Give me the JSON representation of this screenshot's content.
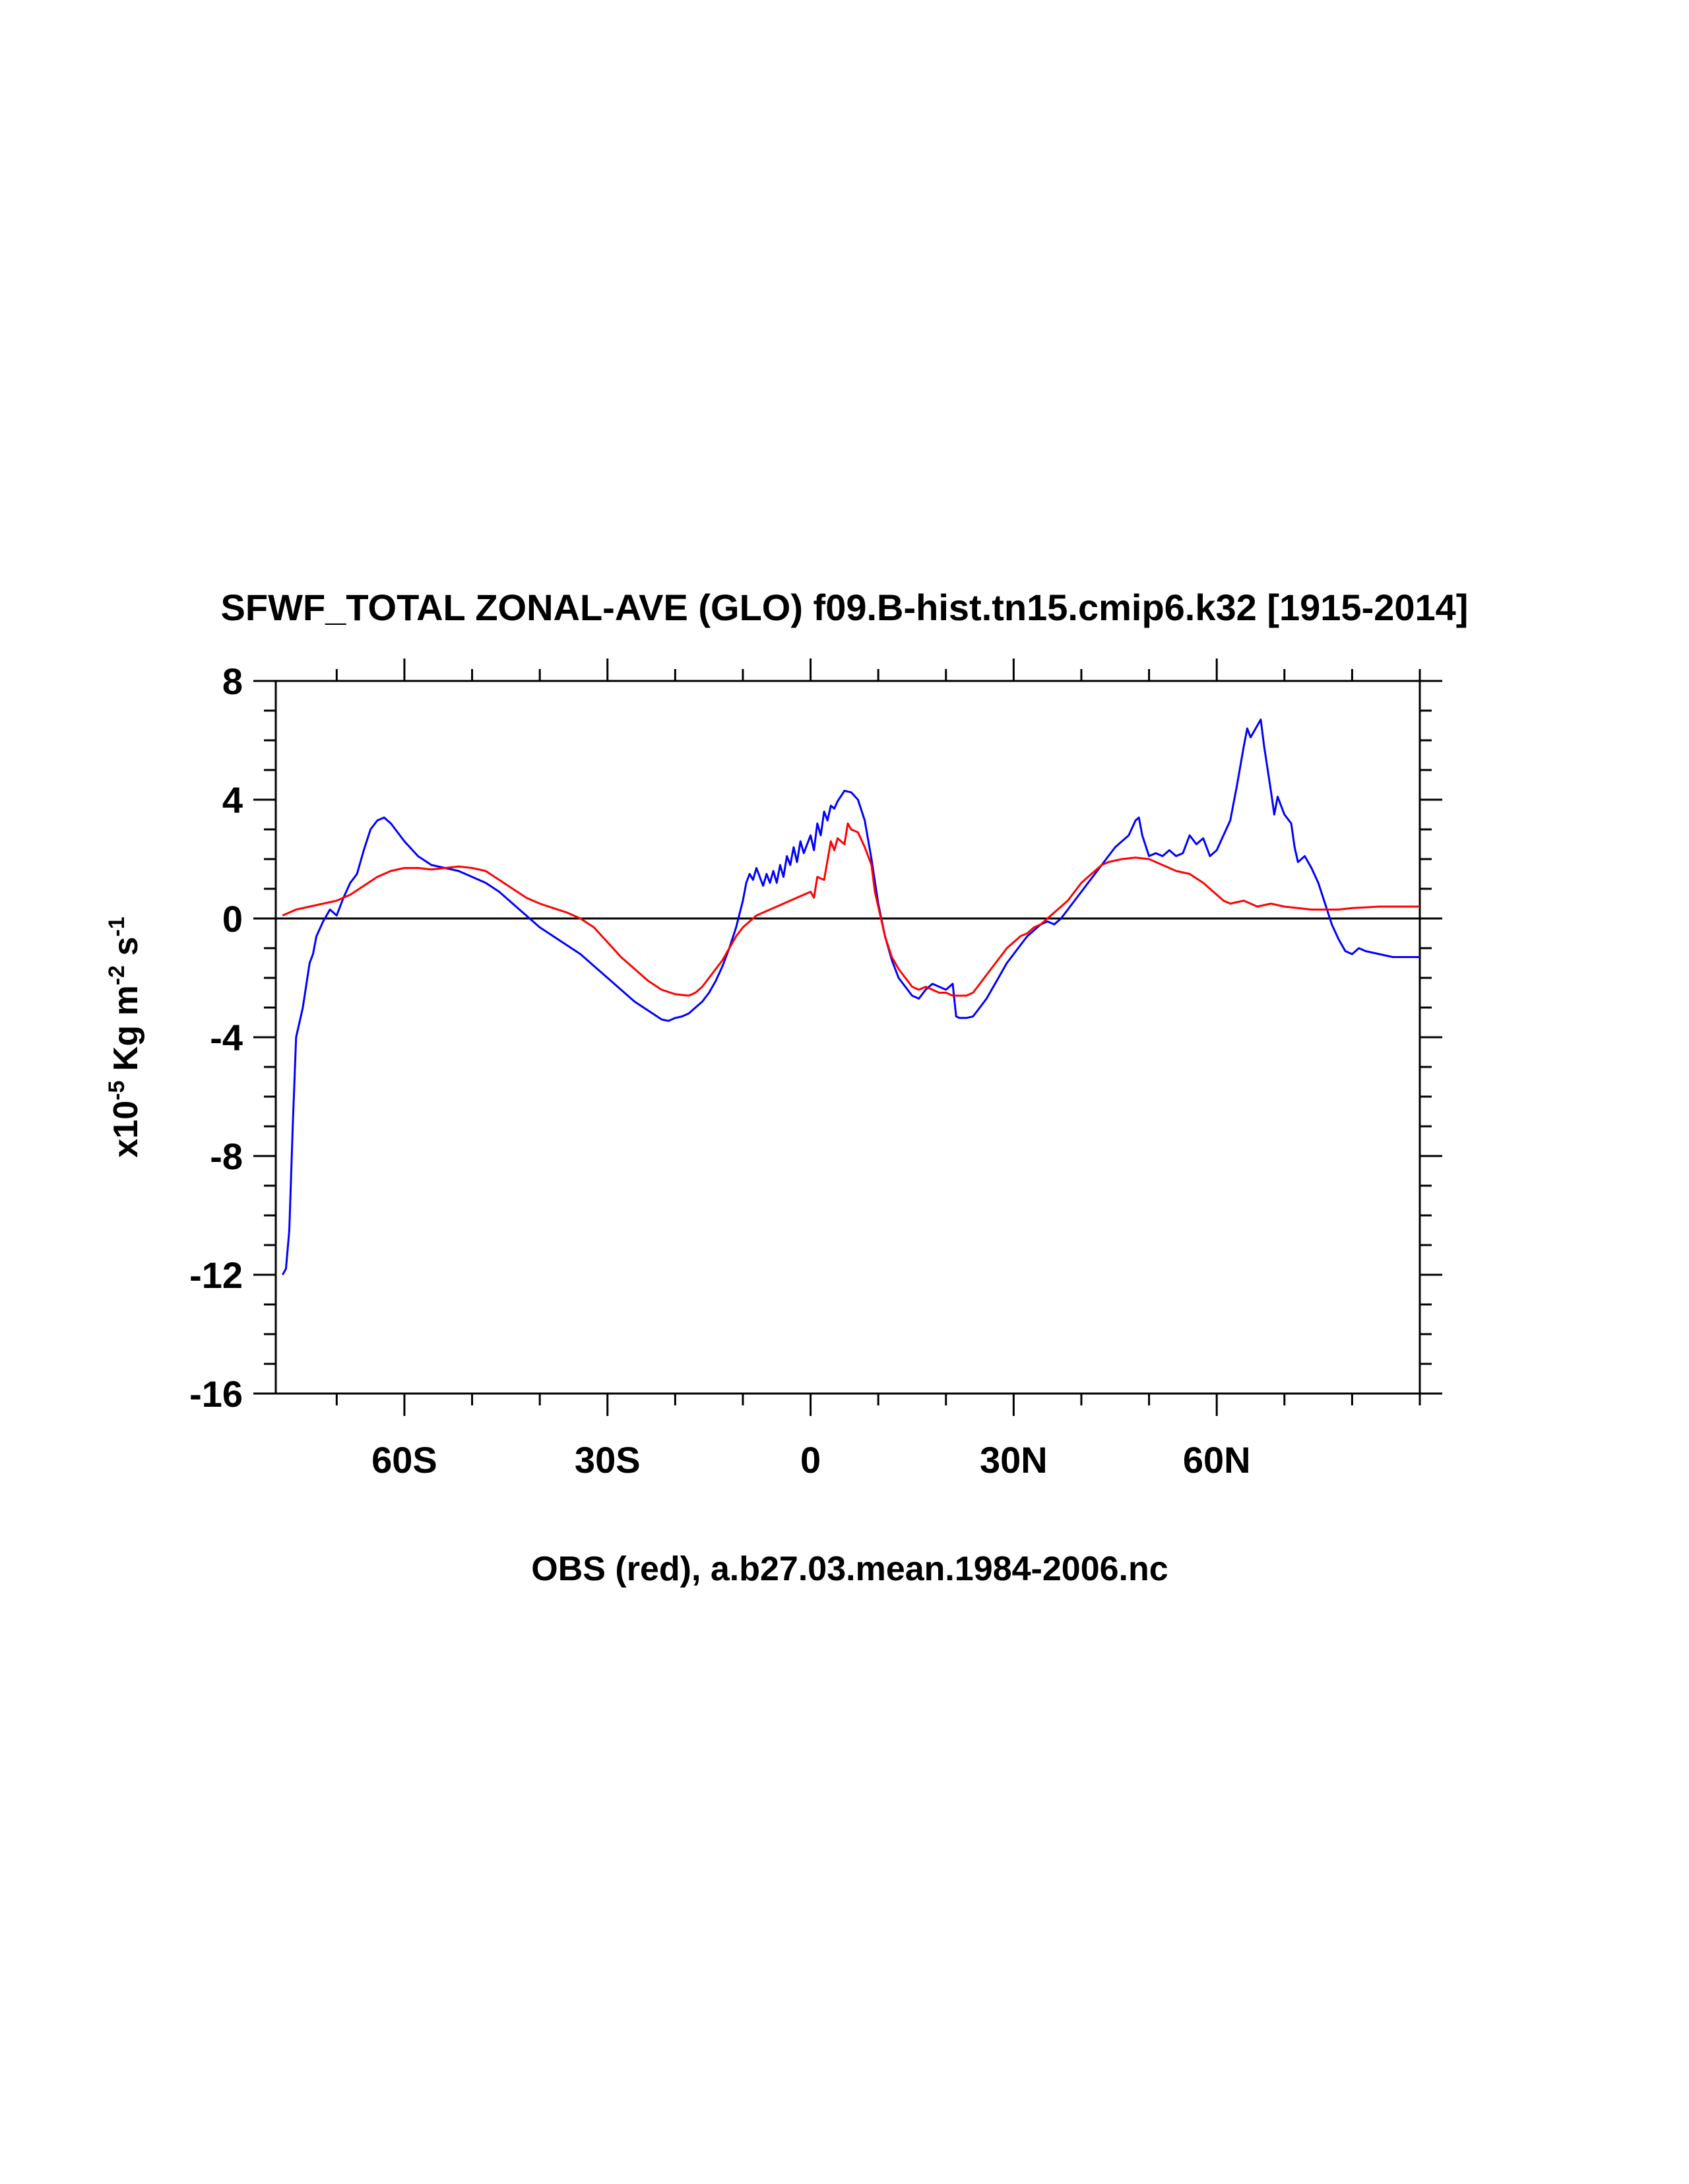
{
  "chart_data": {
    "type": "line",
    "title": "SFWF_TOTAL ZONAL-AVE (GLO) f09.B-hist.tn15.cmip6.k32 [1915-2014]",
    "xlabel": "OBS (red), a.b27.03.mean.1984-2006.nc",
    "ylabel": {
      "prefix": "x10",
      "exp1": "-5",
      "unit1": " Kg m",
      "exp2": "-2",
      "unit2": " s",
      "exp3": "-1"
    },
    "xlim": [
      -79,
      90
    ],
    "ylim": [
      -16,
      8
    ],
    "xticks": [
      {
        "value": -60,
        "label": "60S"
      },
      {
        "value": -30,
        "label": "30S"
      },
      {
        "value": 0,
        "label": "0"
      },
      {
        "value": 30,
        "label": "30N"
      },
      {
        "value": 60,
        "label": "60N"
      }
    ],
    "yticks": [
      {
        "value": 8,
        "label": "8"
      },
      {
        "value": 4,
        "label": "4"
      },
      {
        "value": 0,
        "label": "0"
      },
      {
        "value": -4,
        "label": "-4"
      },
      {
        "value": -8,
        "label": "-8"
      },
      {
        "value": -12,
        "label": "-12"
      },
      {
        "value": -16,
        "label": "-16"
      }
    ],
    "reference_line": 0,
    "series": [
      {
        "color": "#0000ff",
        "points": [
          [
            -78,
            -12.0
          ],
          [
            -77.5,
            -11.8
          ],
          [
            -77,
            -10.5
          ],
          [
            -76.5,
            -7.0
          ],
          [
            -76,
            -4.0
          ],
          [
            -75,
            -3.0
          ],
          [
            -74,
            -1.5
          ],
          [
            -73.5,
            -1.2
          ],
          [
            -73,
            -0.6
          ],
          [
            -72,
            -0.1
          ],
          [
            -71,
            0.3
          ],
          [
            -70,
            0.1
          ],
          [
            -69,
            0.7
          ],
          [
            -68,
            1.2
          ],
          [
            -67,
            1.5
          ],
          [
            -66,
            2.3
          ],
          [
            -65,
            3.0
          ],
          [
            -64,
            3.3
          ],
          [
            -63,
            3.4
          ],
          [
            -62,
            3.2
          ],
          [
            -61,
            2.9
          ],
          [
            -60,
            2.6
          ],
          [
            -58,
            2.1
          ],
          [
            -56,
            1.8
          ],
          [
            -54,
            1.7
          ],
          [
            -52,
            1.6
          ],
          [
            -50,
            1.4
          ],
          [
            -48,
            1.2
          ],
          [
            -46,
            0.9
          ],
          [
            -44,
            0.5
          ],
          [
            -42,
            0.1
          ],
          [
            -40,
            -0.3
          ],
          [
            -38,
            -0.6
          ],
          [
            -36,
            -0.9
          ],
          [
            -34,
            -1.2
          ],
          [
            -32,
            -1.6
          ],
          [
            -30,
            -2.0
          ],
          [
            -28,
            -2.4
          ],
          [
            -26,
            -2.8
          ],
          [
            -24,
            -3.1
          ],
          [
            -22,
            -3.4
          ],
          [
            -21,
            -3.45
          ],
          [
            -20,
            -3.35
          ],
          [
            -19,
            -3.3
          ],
          [
            -18,
            -3.2
          ],
          [
            -17,
            -3.0
          ],
          [
            -16,
            -2.8
          ],
          [
            -15,
            -2.5
          ],
          [
            -14,
            -2.1
          ],
          [
            -13,
            -1.6
          ],
          [
            -12,
            -1.0
          ],
          [
            -11,
            -0.3
          ],
          [
            -10,
            0.6
          ],
          [
            -9.5,
            1.2
          ],
          [
            -9,
            1.5
          ],
          [
            -8.5,
            1.3
          ],
          [
            -8,
            1.7
          ],
          [
            -7.5,
            1.4
          ],
          [
            -7,
            1.1
          ],
          [
            -6.5,
            1.5
          ],
          [
            -6,
            1.2
          ],
          [
            -5.5,
            1.6
          ],
          [
            -5,
            1.2
          ],
          [
            -4.5,
            1.8
          ],
          [
            -4,
            1.4
          ],
          [
            -3.5,
            2.1
          ],
          [
            -3,
            1.8
          ],
          [
            -2.5,
            2.4
          ],
          [
            -2,
            1.9
          ],
          [
            -1.5,
            2.6
          ],
          [
            -1,
            2.2
          ],
          [
            -0.5,
            2.5
          ],
          [
            0,
            2.8
          ],
          [
            0.5,
            2.3
          ],
          [
            1,
            3.2
          ],
          [
            1.5,
            2.8
          ],
          [
            2,
            3.6
          ],
          [
            2.5,
            3.3
          ],
          [
            3,
            3.8
          ],
          [
            3.5,
            3.7
          ],
          [
            4,
            3.95
          ],
          [
            5,
            4.3
          ],
          [
            6,
            4.25
          ],
          [
            7,
            4.0
          ],
          [
            8,
            3.3
          ],
          [
            9,
            2.0
          ],
          [
            10,
            0.5
          ],
          [
            11,
            -0.6
          ],
          [
            12,
            -1.4
          ],
          [
            13,
            -2.0
          ],
          [
            14,
            -2.3
          ],
          [
            15,
            -2.6
          ],
          [
            16,
            -2.7
          ],
          [
            17,
            -2.4
          ],
          [
            18,
            -2.2
          ],
          [
            19,
            -2.3
          ],
          [
            20,
            -2.4
          ],
          [
            21,
            -2.2
          ],
          [
            21.5,
            -3.3
          ],
          [
            22,
            -3.35
          ],
          [
            23,
            -3.35
          ],
          [
            24,
            -3.3
          ],
          [
            25,
            -3.0
          ],
          [
            26,
            -2.7
          ],
          [
            27,
            -2.3
          ],
          [
            28,
            -1.9
          ],
          [
            29,
            -1.5
          ],
          [
            30,
            -1.2
          ],
          [
            31,
            -0.9
          ],
          [
            32,
            -0.6
          ],
          [
            33,
            -0.4
          ],
          [
            34,
            -0.2
          ],
          [
            35,
            -0.1
          ],
          [
            36,
            -0.2
          ],
          [
            37,
            0.0
          ],
          [
            38,
            0.3
          ],
          [
            39,
            0.6
          ],
          [
            40,
            0.9
          ],
          [
            41,
            1.2
          ],
          [
            42,
            1.5
          ],
          [
            43,
            1.8
          ],
          [
            44,
            2.1
          ],
          [
            45,
            2.4
          ],
          [
            46,
            2.6
          ],
          [
            47,
            2.8
          ],
          [
            48,
            3.3
          ],
          [
            48.5,
            3.4
          ],
          [
            49,
            2.8
          ],
          [
            50,
            2.1
          ],
          [
            51,
            2.2
          ],
          [
            52,
            2.1
          ],
          [
            53,
            2.3
          ],
          [
            54,
            2.1
          ],
          [
            55,
            2.2
          ],
          [
            56,
            2.8
          ],
          [
            57,
            2.5
          ],
          [
            58,
            2.7
          ],
          [
            59,
            2.1
          ],
          [
            60,
            2.3
          ],
          [
            61,
            2.8
          ],
          [
            62,
            3.3
          ],
          [
            63,
            4.5
          ],
          [
            64,
            5.8
          ],
          [
            64.5,
            6.4
          ],
          [
            65,
            6.1
          ],
          [
            66,
            6.5
          ],
          [
            66.5,
            6.7
          ],
          [
            67,
            5.8
          ],
          [
            68,
            4.3
          ],
          [
            68.5,
            3.5
          ],
          [
            69,
            4.1
          ],
          [
            70,
            3.5
          ],
          [
            71,
            3.2
          ],
          [
            71.5,
            2.4
          ],
          [
            72,
            1.9
          ],
          [
            73,
            2.1
          ],
          [
            74,
            1.7
          ],
          [
            75,
            1.2
          ],
          [
            76,
            0.5
          ],
          [
            77,
            -0.2
          ],
          [
            78,
            -0.7
          ],
          [
            79,
            -1.1
          ],
          [
            80,
            -1.2
          ],
          [
            81,
            -1.0
          ],
          [
            82,
            -1.1
          ],
          [
            84,
            -1.2
          ],
          [
            86,
            -1.3
          ],
          [
            88,
            -1.3
          ],
          [
            90,
            -1.3
          ]
        ]
      },
      {
        "color": "#ff0000",
        "points": [
          [
            -78,
            0.1
          ],
          [
            -77,
            0.2
          ],
          [
            -76,
            0.3
          ],
          [
            -74,
            0.4
          ],
          [
            -72,
            0.5
          ],
          [
            -70,
            0.6
          ],
          [
            -68,
            0.8
          ],
          [
            -66,
            1.1
          ],
          [
            -64,
            1.4
          ],
          [
            -62,
            1.6
          ],
          [
            -60,
            1.7
          ],
          [
            -58,
            1.7
          ],
          [
            -56,
            1.65
          ],
          [
            -54,
            1.7
          ],
          [
            -52,
            1.75
          ],
          [
            -50,
            1.7
          ],
          [
            -48,
            1.6
          ],
          [
            -46,
            1.3
          ],
          [
            -44,
            1.0
          ],
          [
            -42,
            0.7
          ],
          [
            -40,
            0.5
          ],
          [
            -38,
            0.35
          ],
          [
            -36,
            0.2
          ],
          [
            -34,
            0.0
          ],
          [
            -32,
            -0.3
          ],
          [
            -30,
            -0.8
          ],
          [
            -28,
            -1.3
          ],
          [
            -26,
            -1.7
          ],
          [
            -24,
            -2.1
          ],
          [
            -22,
            -2.4
          ],
          [
            -20,
            -2.55
          ],
          [
            -18,
            -2.6
          ],
          [
            -17,
            -2.5
          ],
          [
            -16,
            -2.3
          ],
          [
            -15,
            -2.0
          ],
          [
            -14,
            -1.7
          ],
          [
            -13,
            -1.4
          ],
          [
            -12,
            -1.0
          ],
          [
            -11,
            -0.6
          ],
          [
            -10,
            -0.3
          ],
          [
            -9,
            -0.1
          ],
          [
            -8,
            0.1
          ],
          [
            -7,
            0.2
          ],
          [
            -6,
            0.3
          ],
          [
            -5,
            0.4
          ],
          [
            -4,
            0.5
          ],
          [
            -3,
            0.6
          ],
          [
            -2,
            0.7
          ],
          [
            -1,
            0.8
          ],
          [
            0,
            0.9
          ],
          [
            0.5,
            0.7
          ],
          [
            1,
            1.4
          ],
          [
            2,
            1.3
          ],
          [
            3,
            2.6
          ],
          [
            3.5,
            2.3
          ],
          [
            4,
            2.7
          ],
          [
            5,
            2.5
          ],
          [
            5.5,
            3.2
          ],
          [
            6,
            3.0
          ],
          [
            7,
            2.9
          ],
          [
            8,
            2.4
          ],
          [
            9,
            1.8
          ],
          [
            9.5,
            0.9
          ],
          [
            10,
            0.4
          ],
          [
            11,
            -0.6
          ],
          [
            12,
            -1.3
          ],
          [
            13,
            -1.7
          ],
          [
            14,
            -2.0
          ],
          [
            15,
            -2.3
          ],
          [
            16,
            -2.4
          ],
          [
            17,
            -2.3
          ],
          [
            18,
            -2.4
          ],
          [
            19,
            -2.5
          ],
          [
            20,
            -2.5
          ],
          [
            21,
            -2.6
          ],
          [
            22,
            -2.6
          ],
          [
            23,
            -2.6
          ],
          [
            24,
            -2.5
          ],
          [
            25,
            -2.2
          ],
          [
            26,
            -1.9
          ],
          [
            27,
            -1.6
          ],
          [
            28,
            -1.3
          ],
          [
            29,
            -1.0
          ],
          [
            30,
            -0.8
          ],
          [
            31,
            -0.6
          ],
          [
            32,
            -0.5
          ],
          [
            33,
            -0.3
          ],
          [
            34,
            -0.2
          ],
          [
            35,
            0.0
          ],
          [
            36,
            0.2
          ],
          [
            37,
            0.4
          ],
          [
            38,
            0.6
          ],
          [
            39,
            0.9
          ],
          [
            40,
            1.2
          ],
          [
            41,
            1.4
          ],
          [
            42,
            1.6
          ],
          [
            43,
            1.8
          ],
          [
            44,
            1.9
          ],
          [
            46,
            2.0
          ],
          [
            48,
            2.05
          ],
          [
            50,
            2.0
          ],
          [
            52,
            1.8
          ],
          [
            54,
            1.6
          ],
          [
            56,
            1.5
          ],
          [
            58,
            1.2
          ],
          [
            60,
            0.8
          ],
          [
            61,
            0.6
          ],
          [
            62,
            0.5
          ],
          [
            64,
            0.6
          ],
          [
            65,
            0.5
          ],
          [
            66,
            0.4
          ],
          [
            68,
            0.5
          ],
          [
            70,
            0.4
          ],
          [
            72,
            0.35
          ],
          [
            74,
            0.3
          ],
          [
            76,
            0.3
          ],
          [
            78,
            0.3
          ],
          [
            80,
            0.35
          ],
          [
            84,
            0.4
          ],
          [
            88,
            0.4
          ],
          [
            90,
            0.4
          ]
        ]
      }
    ]
  }
}
